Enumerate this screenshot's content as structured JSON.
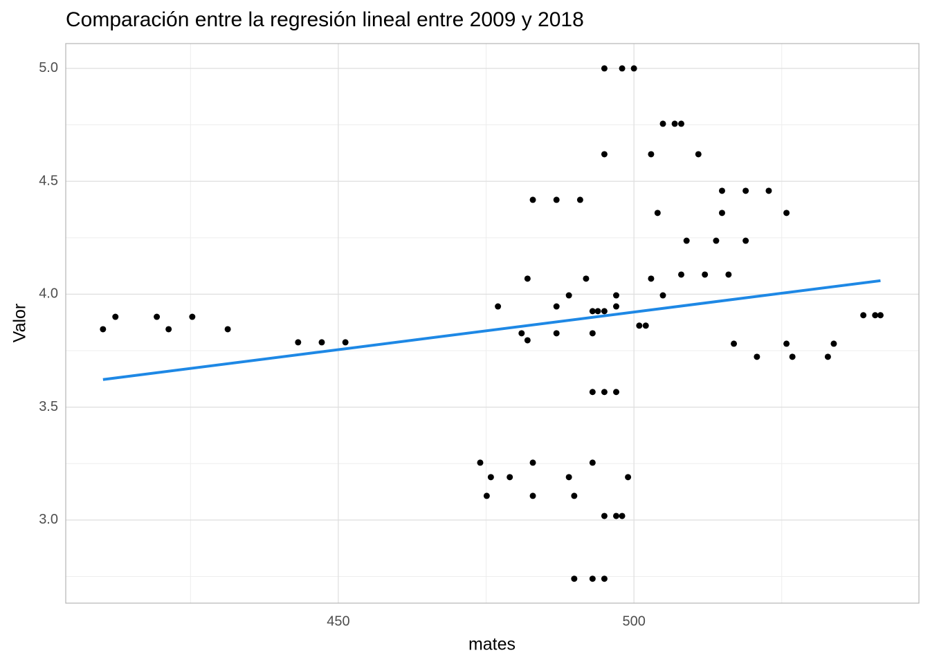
{
  "chart_data": {
    "type": "scatter",
    "title": "Comparación entre la regresión lineal entre 2009 y 2018",
    "x_label": "mates",
    "y_label": "Valor",
    "xlim": [
      403.9,
      548.2
    ],
    "ylim": [
      2.632,
      5.11
    ],
    "xticks": [
      450,
      500
    ],
    "yticks": [
      {
        "value": 3,
        "label": "3.0"
      },
      {
        "value": 3.5,
        "label": "3.5"
      },
      {
        "value": 4,
        "label": "4.0"
      },
      {
        "value": 4.5,
        "label": "4.5"
      },
      {
        "value": 5,
        "label": "5.0"
      }
    ],
    "x_minor_grid": [
      425,
      475,
      525
    ],
    "y_minor_grid": [
      2.75,
      3.25,
      3.75,
      4.25,
      4.75
    ],
    "grid": true,
    "color": "#000000",
    "x": [
      410.2,
      412.3,
      419.3,
      421.3,
      425.3,
      431.3,
      443.2,
      447.2,
      451.2,
      474.0,
      475.1,
      475.8,
      477.0,
      479.0,
      481.0,
      482.0,
      482.0,
      482.9,
      482.9,
      482.9,
      486.9,
      486.9,
      486.9,
      489.0,
      489.0,
      489.9,
      489.9,
      490.9,
      491.9,
      493.0,
      493.0,
      493.0,
      493.0,
      493.0,
      493.9,
      495.0,
      495.0,
      495.0,
      495.0,
      495.0,
      495.0,
      497.0,
      497.0,
      497.0,
      497.0,
      498.0,
      498.0,
      499.0,
      500.0,
      500.9,
      502.0,
      502.9,
      502.9,
      504.0,
      504.9,
      504.9,
      506.9,
      508.0,
      508.0,
      508.9,
      510.9,
      512.0,
      513.9,
      514.9,
      514.9,
      516.0,
      516.9,
      518.9,
      518.9,
      520.8,
      522.8,
      525.8,
      525.8,
      526.8,
      532.8,
      533.8,
      538.8,
      540.8,
      541.7
    ],
    "values": [
      3.845,
      3.9,
      3.9,
      3.845,
      3.9,
      3.845,
      3.787,
      3.787,
      3.787,
      3.254,
      3.107,
      3.19,
      3.946,
      3.19,
      3.827,
      3.796,
      4.069,
      3.254,
      3.107,
      4.418,
      3.946,
      3.827,
      4.418,
      3.19,
      3.995,
      3.107,
      2.74,
      4.418,
      4.069,
      3.925,
      3.827,
      3.567,
      3.254,
      2.74,
      3.925,
      3.925,
      4.62,
      3.567,
      3.018,
      2.74,
      5.0,
      3.995,
      3.946,
      3.567,
      3.018,
      5.0,
      3.018,
      3.19,
      5.0,
      3.861,
      3.861,
      4.62,
      4.069,
      4.36,
      3.995,
      4.755,
      4.755,
      4.755,
      4.087,
      4.237,
      4.62,
      4.087,
      4.237,
      4.458,
      4.36,
      4.087,
      3.781,
      4.458,
      4.237,
      3.723,
      4.458,
      4.36,
      3.781,
      3.723,
      3.723,
      3.781,
      3.907,
      3.907,
      3.907
    ],
    "regression": {
      "type": "line",
      "color": "#1e88e5",
      "x": [
        410.2,
        541.7
      ],
      "values": [
        3.622,
        4.06
      ]
    }
  }
}
